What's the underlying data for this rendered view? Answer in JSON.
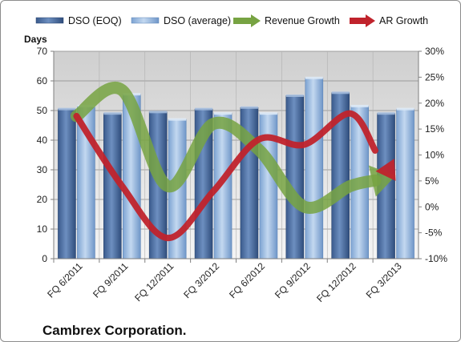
{
  "chart_data": {
    "type": "bar",
    "title": "",
    "ylabel": "Days",
    "xlabel": "",
    "categories": [
      "FQ 6/2011",
      "FQ 9/2011",
      "FQ 12/2011",
      "FQ 3/2012",
      "FQ 6/2012",
      "FQ 9/2012",
      "FQ 12/2012",
      "FQ 3/2013"
    ],
    "ylim": [
      0,
      70
    ],
    "yticks": [
      0,
      10,
      20,
      30,
      40,
      50,
      60,
      70
    ],
    "y2lim": [
      -10,
      30
    ],
    "y2ticks": [
      "-10%",
      "-5%",
      "0%",
      "5%",
      "10%",
      "15%",
      "20%",
      "25%",
      "30%"
    ],
    "y2values": [
      -10,
      -5,
      0,
      5,
      10,
      15,
      20,
      25,
      30
    ],
    "grid": true,
    "legend_position": "top",
    "series": [
      {
        "name": "DSO (EOQ)",
        "kind": "bar",
        "axis": "left",
        "color": "#4f6f9f",
        "values": [
          50.5,
          49,
          49.5,
          50.5,
          51,
          55,
          56,
          49
        ]
      },
      {
        "name": "DSO (average)",
        "kind": "bar",
        "axis": "left",
        "color": "#8fb2dc",
        "values": [
          51.5,
          55.5,
          47,
          49,
          49,
          61,
          51.5,
          50.5
        ]
      },
      {
        "name": "Revenue Growth",
        "kind": "line",
        "axis": "right",
        "unit": "%",
        "color": "#77a342",
        "values": [
          17.5,
          22.5,
          4,
          16,
          11,
          0,
          4,
          6
        ]
      },
      {
        "name": "AR Growth",
        "kind": "line",
        "axis": "right",
        "unit": "%",
        "color": "#c0232c",
        "values": [
          17.5,
          4,
          -6,
          3,
          13,
          12,
          18,
          5
        ]
      }
    ]
  },
  "footer": {
    "company": "Cambrex Corporation."
  }
}
